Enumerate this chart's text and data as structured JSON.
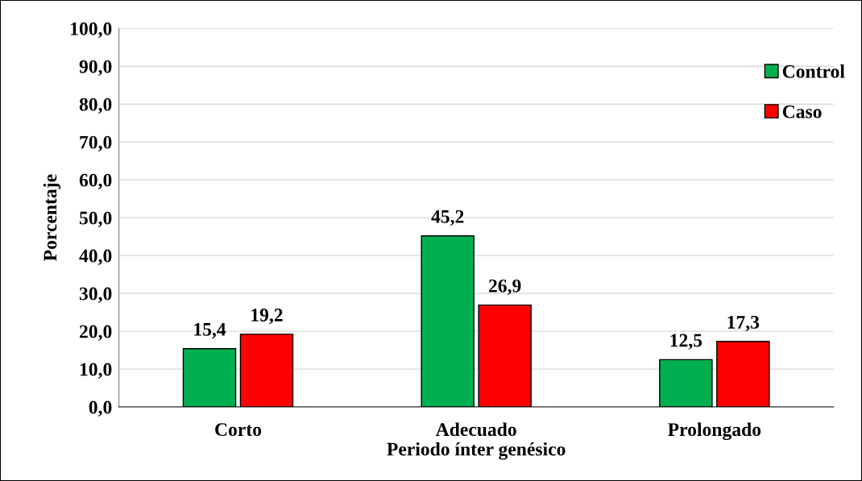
{
  "chart_data": {
    "type": "bar",
    "xlabel": "Periodo ínter genésico",
    "ylabel": "Porcentaje",
    "categories": [
      "Corto",
      "Adecuado",
      "Prolongado"
    ],
    "series": [
      {
        "name": "Control",
        "color": "#00b050",
        "values": [
          15.4,
          45.2,
          12.5
        ],
        "value_labels": [
          "15,4",
          "45,2",
          "12,5"
        ]
      },
      {
        "name": "Caso",
        "color": "#ff0000",
        "values": [
          19.2,
          26.9,
          17.3
        ],
        "value_labels": [
          "19,2",
          "26,9",
          "17,3"
        ]
      }
    ],
    "ylim": [
      0,
      100
    ],
    "yticks": [
      {
        "value": 0,
        "label": "0,0"
      },
      {
        "value": 10,
        "label": "10,0"
      },
      {
        "value": 20,
        "label": "20,0"
      },
      {
        "value": 30,
        "label": "30,0"
      },
      {
        "value": 40,
        "label": "40,0"
      },
      {
        "value": 50,
        "label": "50,0"
      },
      {
        "value": 60,
        "label": "60,0"
      },
      {
        "value": 70,
        "label": "70,0"
      },
      {
        "value": 80,
        "label": "80,0"
      },
      {
        "value": 90,
        "label": "90,0"
      },
      {
        "value": 100,
        "label": "100,0"
      }
    ],
    "grid": "y",
    "legend": "top right"
  }
}
